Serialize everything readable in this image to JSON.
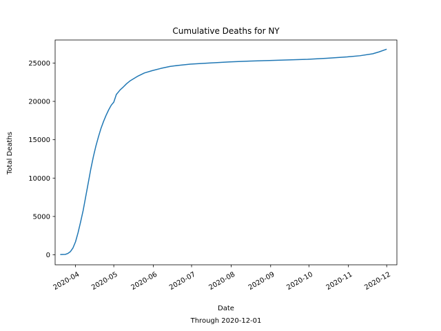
{
  "chart_data": {
    "type": "line",
    "title": "Cumulative Deaths for NY",
    "xlabel": "Date",
    "xlabel_sub": "Through 2020-12-01",
    "ylabel": "Total Deaths",
    "x_scale": "date",
    "xlim": [
      "2020-03-16",
      "2020-12-09"
    ],
    "ylim": [
      -1300,
      28000
    ],
    "grid": false,
    "x_ticks": [
      "2020-04-01",
      "2020-05-01",
      "2020-06-01",
      "2020-07-01",
      "2020-08-01",
      "2020-09-01",
      "2020-10-01",
      "2020-11-01",
      "2020-12-01"
    ],
    "x_tick_labels": [
      "2020-04",
      "2020-05",
      "2020-06",
      "2020-07",
      "2020-08",
      "2020-09",
      "2020-10",
      "2020-11",
      "2020-12"
    ],
    "y_ticks": [
      0,
      5000,
      10000,
      15000,
      20000,
      25000
    ],
    "y_tick_labels": [
      "0",
      "5000",
      "10000",
      "15000",
      "20000",
      "25000"
    ],
    "series": [
      {
        "color": "#1f77b4",
        "x": [
          "2020-03-20",
          "2020-03-24",
          "2020-03-26",
          "2020-03-28",
          "2020-03-30",
          "2020-04-01",
          "2020-04-03",
          "2020-04-05",
          "2020-04-07",
          "2020-04-09",
          "2020-04-11",
          "2020-04-13",
          "2020-04-15",
          "2020-04-17",
          "2020-04-19",
          "2020-04-21",
          "2020-04-23",
          "2020-04-25",
          "2020-04-27",
          "2020-04-29",
          "2020-05-01",
          "2020-05-03",
          "2020-05-05",
          "2020-05-06",
          "2020-05-08",
          "2020-05-11",
          "2020-05-14",
          "2020-05-17",
          "2020-05-20",
          "2020-05-25",
          "2020-05-31",
          "2020-06-07",
          "2020-06-14",
          "2020-06-21",
          "2020-06-30",
          "2020-07-15",
          "2020-07-31",
          "2020-08-15",
          "2020-08-31",
          "2020-09-15",
          "2020-09-30",
          "2020-10-15",
          "2020-10-31",
          "2020-11-10",
          "2020-11-20",
          "2020-11-25",
          "2020-12-01"
        ],
        "y": [
          40,
          60,
          180,
          420,
          900,
          1700,
          2900,
          4300,
          5800,
          7600,
          9400,
          11200,
          12800,
          14200,
          15400,
          16500,
          17400,
          18200,
          18900,
          19500,
          19900,
          20900,
          21300,
          21500,
          21800,
          22300,
          22700,
          23000,
          23300,
          23700,
          24000,
          24300,
          24550,
          24700,
          24850,
          25000,
          25150,
          25250,
          25330,
          25400,
          25480,
          25620,
          25800,
          25950,
          26200,
          26450,
          26800
        ]
      }
    ]
  }
}
